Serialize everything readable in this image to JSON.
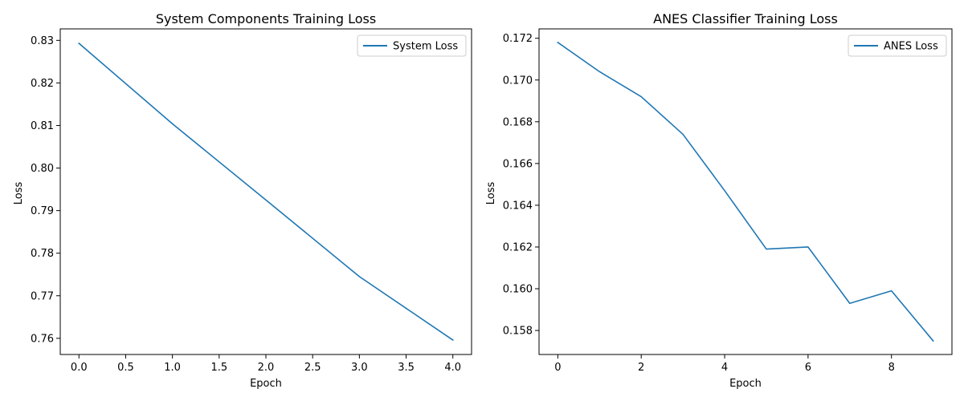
{
  "chart_data": [
    {
      "type": "line",
      "title": "System Components Training Loss",
      "xlabel": "Epoch",
      "ylabel": "Loss",
      "xlim": [
        -0.2,
        4.2
      ],
      "ylim": [
        0.7562,
        0.8327
      ],
      "xticks": [
        0.0,
        0.5,
        1.0,
        1.5,
        2.0,
        2.5,
        3.0,
        3.5,
        4.0
      ],
      "xtick_labels": [
        "0.0",
        "0.5",
        "1.0",
        "1.5",
        "2.0",
        "2.5",
        "3.0",
        "3.5",
        "4.0"
      ],
      "yticks": [
        0.76,
        0.77,
        0.78,
        0.79,
        0.8,
        0.81,
        0.82,
        0.83
      ],
      "ytick_labels": [
        "0.76",
        "0.77",
        "0.78",
        "0.79",
        "0.80",
        "0.81",
        "0.82",
        "0.83"
      ],
      "grid": false,
      "legend": "upper right",
      "series": [
        {
          "name": "System Loss",
          "color": "#1f77b4",
          "x": [
            0,
            1,
            2,
            3,
            4
          ],
          "y": [
            0.8293,
            0.8104,
            0.7925,
            0.7745,
            0.7596
          ]
        }
      ]
    },
    {
      "type": "line",
      "title": "ANES Classifier Training Loss",
      "xlabel": "Epoch",
      "ylabel": "Loss",
      "xlim": [
        -0.45,
        9.45
      ],
      "ylim": [
        0.15685,
        0.17245
      ],
      "xticks": [
        0,
        2,
        4,
        6,
        8
      ],
      "xtick_labels": [
        "0",
        "2",
        "4",
        "6",
        "8"
      ],
      "yticks": [
        0.158,
        0.16,
        0.162,
        0.164,
        0.166,
        0.168,
        0.17,
        0.172
      ],
      "ytick_labels": [
        "0.158",
        "0.160",
        "0.162",
        "0.164",
        "0.166",
        "0.168",
        "0.170",
        "0.172"
      ],
      "grid": false,
      "legend": "upper right",
      "series": [
        {
          "name": "ANES Loss",
          "color": "#1f77b4",
          "x": [
            0,
            1,
            2,
            3,
            4,
            5,
            6,
            7,
            8,
            9
          ],
          "y": [
            0.1718,
            0.1704,
            0.1692,
            0.1674,
            0.1647,
            0.1619,
            0.162,
            0.1593,
            0.1599,
            0.1575
          ]
        }
      ]
    }
  ]
}
